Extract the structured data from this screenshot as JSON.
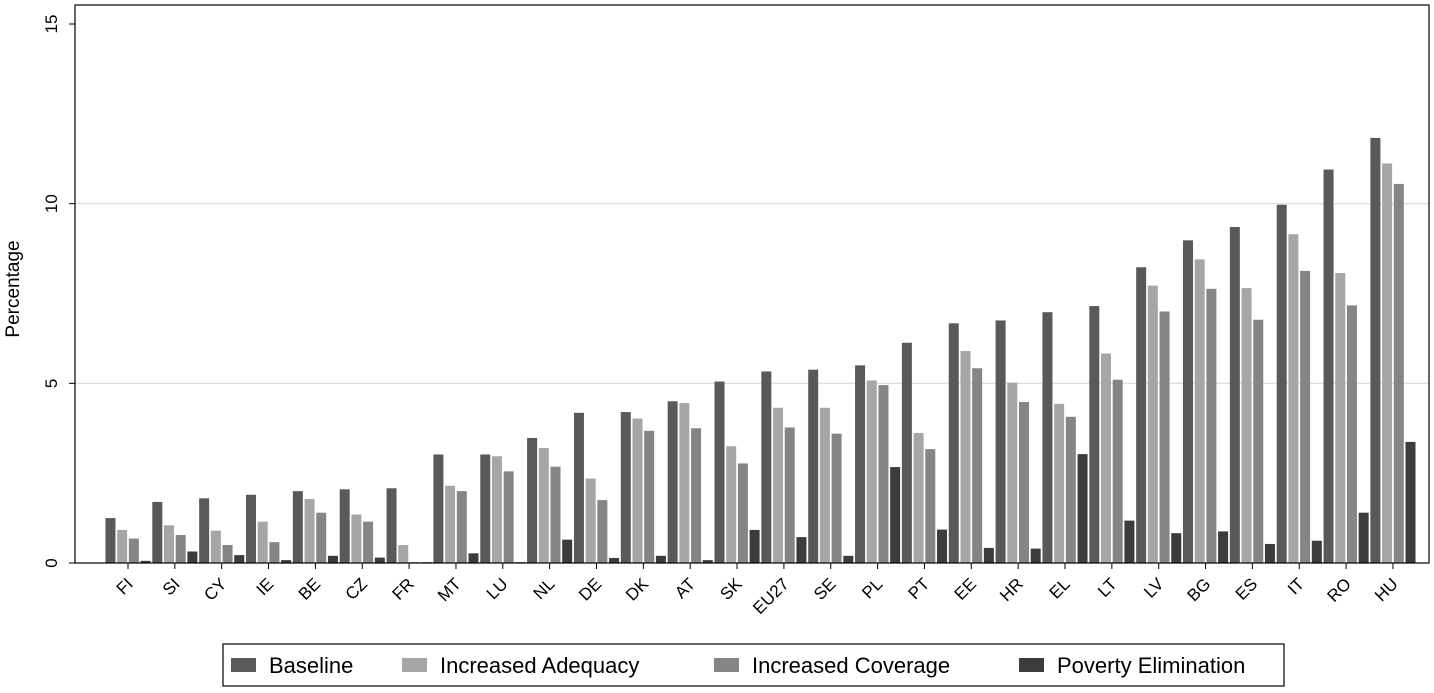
{
  "chart_data": {
    "type": "bar",
    "ylabel": "Percentage",
    "xlabel": "",
    "ylim": [
      0,
      15
    ],
    "yticks": [
      0,
      5,
      10,
      15
    ],
    "grid": true,
    "legend_position": "bottom",
    "categories": [
      "FI",
      "SI",
      "CY",
      "IE",
      "BE",
      "CZ",
      "FR",
      "MT",
      "LU",
      "NL",
      "DE",
      "DK",
      "AT",
      "SK",
      "EU27",
      "SE",
      "PL",
      "PT",
      "EE",
      "HR",
      "EL",
      "LT",
      "LV",
      "BG",
      "ES",
      "IT",
      "RO",
      "HU"
    ],
    "series": [
      {
        "name": "Baseline",
        "color": "#595959",
        "values": [
          1.25,
          1.7,
          1.8,
          1.9,
          2.0,
          2.05,
          2.08,
          3.02,
          3.02,
          3.48,
          4.18,
          4.2,
          4.5,
          5.05,
          5.33,
          5.38,
          5.5,
          6.13,
          6.67,
          6.75,
          6.98,
          7.15,
          8.23,
          8.98,
          9.35,
          9.97,
          10.95,
          11.83
        ]
      },
      {
        "name": "Increased Adequacy",
        "color": "#a6a6a6",
        "values": [
          0.92,
          1.05,
          0.9,
          1.15,
          1.78,
          1.35,
          0.5,
          2.15,
          2.97,
          3.2,
          2.35,
          4.02,
          4.45,
          3.25,
          4.32,
          4.32,
          5.08,
          3.62,
          5.9,
          5.02,
          4.43,
          5.83,
          7.72,
          8.45,
          7.65,
          9.15,
          8.07,
          11.12
        ]
      },
      {
        "name": "Increased Coverage",
        "color": "#858585",
        "values": [
          0.68,
          0.78,
          0.5,
          0.58,
          1.4,
          1.15,
          0.02,
          2.0,
          2.55,
          2.68,
          1.75,
          3.68,
          3.75,
          2.77,
          3.77,
          3.6,
          4.95,
          3.17,
          5.42,
          4.48,
          4.07,
          5.1,
          7.0,
          7.63,
          6.77,
          8.13,
          7.17,
          10.55
        ]
      },
      {
        "name": "Poverty Elimination",
        "color": "#3c3c3c",
        "values": [
          0.06,
          0.32,
          0.22,
          0.08,
          0.2,
          0.15,
          0.0,
          0.27,
          0.0,
          0.65,
          0.14,
          0.2,
          0.08,
          0.92,
          0.72,
          0.2,
          2.67,
          0.93,
          0.42,
          0.4,
          3.03,
          1.18,
          0.83,
          0.88,
          0.53,
          0.62,
          1.4,
          3.37
        ]
      }
    ]
  }
}
